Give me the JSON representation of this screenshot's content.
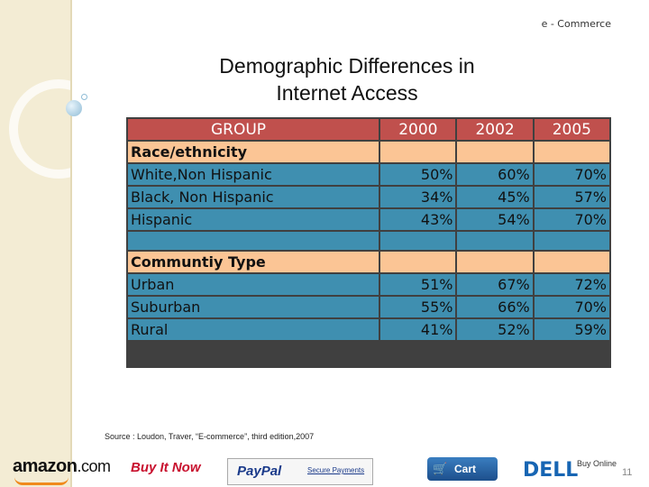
{
  "header_tag": "e - Commerce",
  "title_line1": "Demographic Differences in",
  "title_line2": "Internet Access",
  "table": {
    "headers": [
      "GROUP",
      "2000",
      "2002",
      "2005"
    ],
    "section1": "Race/ethnicity",
    "rows1": [
      {
        "label": "White,Non Hispanic",
        "v2000": "50%",
        "v2002": "60%",
        "v2005": "70%"
      },
      {
        "label": "Black, Non Hispanic",
        "v2000": "34%",
        "v2002": "45%",
        "v2005": "57%"
      },
      {
        "label": "Hispanic",
        "v2000": "43%",
        "v2002": "54%",
        "v2005": "70%"
      }
    ],
    "section2": "Communtiy Type",
    "rows2": [
      {
        "label": "Urban",
        "v2000": "51%",
        "v2002": "67%",
        "v2005": "72%"
      },
      {
        "label": "Suburban",
        "v2000": "55%",
        "v2002": "66%",
        "v2005": "70%"
      },
      {
        "label": "Rural",
        "v2000": "41%",
        "v2002": "52%",
        "v2005": "59%"
      }
    ]
  },
  "source": "Source : Loudon, Traver, “E-commerce”, third edition,2007",
  "logos": {
    "amazon": "amazon",
    "amazon_com": ".com",
    "buyitnow": "Buy It Now",
    "paypal": "PayPal",
    "secure_payments": "Secure Payments",
    "cart": "Cart",
    "dell": "DELL",
    "buy_online": "Buy Online"
  },
  "page_number": "11",
  "colors": {
    "header_row": "#c0504d",
    "section_row": "#fbc595",
    "data_row": "#3f8fb0"
  }
}
